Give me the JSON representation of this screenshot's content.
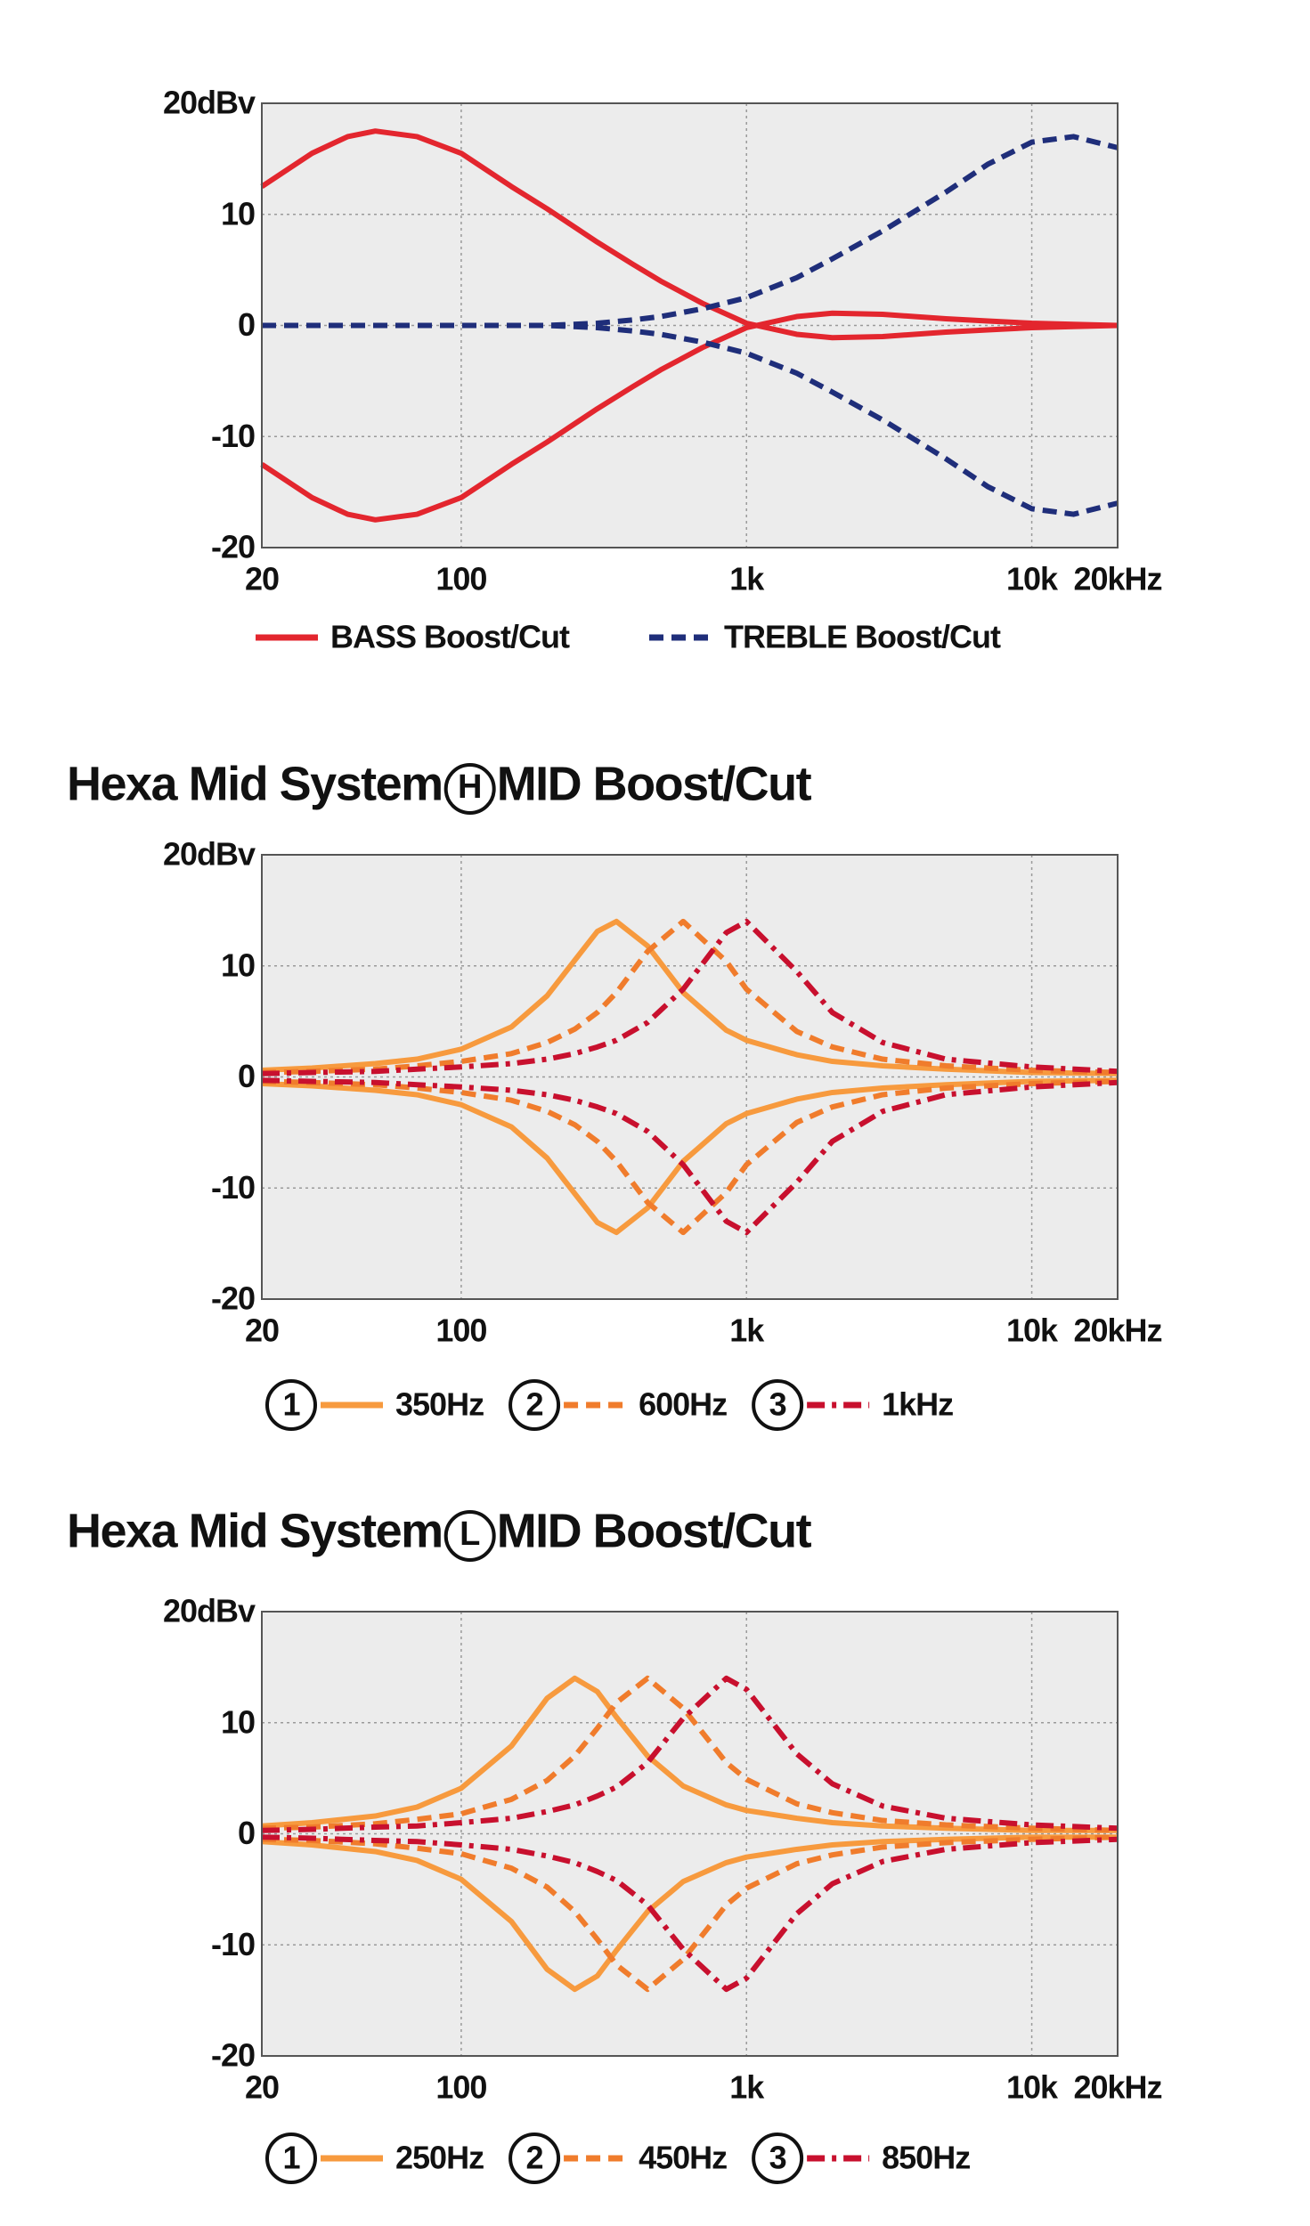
{
  "chart_data": [
    {
      "type": "line",
      "xscale": "log",
      "grid": true,
      "xlim": [
        20,
        20000
      ],
      "xticks": [
        20,
        100,
        {
          "value": 1000,
          "label": "1k"
        },
        {
          "value": 10000,
          "label": "10k"
        },
        {
          "value": 20000,
          "label": "20kHz"
        }
      ],
      "ylim": [
        -20,
        20
      ],
      "yticks": [
        {
          "value": 20,
          "label": "20dBv"
        },
        10,
        0,
        -10,
        -20
      ],
      "x": [
        20,
        30,
        40,
        50,
        70,
        100,
        150,
        200,
        300,
        400,
        500,
        700,
        1000,
        1500,
        2000,
        3000,
        5000,
        7000,
        10000,
        14000,
        20000
      ],
      "series": [
        {
          "name": "BASS Boost/Cut",
          "color": "#e3262e",
          "dash": "solid",
          "boost": [
            12.5,
            15.5,
            17,
            17.5,
            17,
            15.5,
            12.5,
            10.5,
            7.5,
            5.5,
            4,
            2,
            0.2,
            -0.8,
            -1.1,
            -1,
            -0.6,
            -0.4,
            -0.2,
            -0.1,
            0
          ],
          "cut": [
            -12.5,
            -15.5,
            -17,
            -17.5,
            -17,
            -15.5,
            -12.5,
            -10.5,
            -7.5,
            -5.5,
            -4,
            -2,
            -0.2,
            0.8,
            1.1,
            1,
            0.6,
            0.4,
            0.2,
            0.1,
            0
          ]
        },
        {
          "name": "TREBLE Boost/Cut",
          "color": "#1f2e7a",
          "dash": "dashed",
          "boost": [
            0,
            0,
            0,
            0,
            0,
            0,
            0,
            0,
            0.2,
            0.5,
            0.8,
            1.5,
            2.5,
            4.3,
            6,
            8.5,
            12,
            14.5,
            16.5,
            17,
            16
          ],
          "cut": [
            0,
            0,
            0,
            0,
            0,
            0,
            0,
            0,
            -0.2,
            -0.5,
            -0.8,
            -1.5,
            -2.5,
            -4.3,
            -6,
            -8.5,
            -12,
            -14.5,
            -16.5,
            -17,
            -16
          ]
        }
      ]
    },
    {
      "type": "line",
      "xscale": "log",
      "grid": true,
      "title": "Hexa Mid System",
      "title_badge": "H",
      "title_rest": "MID Boost/Cut",
      "xlim": [
        20,
        20000
      ],
      "xticks": [
        20,
        100,
        {
          "value": 1000,
          "label": "1k"
        },
        {
          "value": 10000,
          "label": "10k"
        },
        {
          "value": 20000,
          "label": "20kHz"
        }
      ],
      "ylim": [
        -20,
        20
      ],
      "yticks": [
        {
          "value": 20,
          "label": "20dBv"
        },
        10,
        0,
        -10,
        -20
      ],
      "x": [
        20,
        30,
        50,
        70,
        100,
        150,
        200,
        250,
        300,
        350,
        450,
        600,
        850,
        1000,
        1500,
        2000,
        3000,
        5000,
        10000,
        20000
      ],
      "series": [
        {
          "number": "1",
          "name": "350Hz",
          "color": "#f79a3e",
          "dash": "solid",
          "boost": [
            0.6,
            0.8,
            1.2,
            1.6,
            2.5,
            4.5,
            7.3,
            10.5,
            13.1,
            14,
            11.8,
            7.6,
            4.2,
            3.3,
            2,
            1.4,
            1,
            0.7,
            0.4,
            0.3
          ],
          "cut": [
            -0.6,
            -0.8,
            -1.2,
            -1.6,
            -2.5,
            -4.5,
            -7.3,
            -10.5,
            -13.1,
            -14,
            -11.8,
            -7.6,
            -4.2,
            -3.3,
            -2,
            -1.4,
            -1,
            -0.7,
            -0.4,
            -0.3
          ]
        },
        {
          "number": "2",
          "name": "600Hz",
          "color": "#f07c2c",
          "dash": "dashed",
          "boost": [
            0.4,
            0.5,
            0.7,
            1,
            1.4,
            2.1,
            3.1,
            4.3,
            5.8,
            7.6,
            11.3,
            14,
            10.4,
            7.9,
            4.1,
            2.7,
            1.6,
            1,
            0.6,
            0.4
          ],
          "cut": [
            -0.4,
            -0.5,
            -0.7,
            -1,
            -1.4,
            -2.1,
            -3.1,
            -4.3,
            -5.8,
            -7.6,
            -11.3,
            -14,
            -10.4,
            -7.9,
            -4.1,
            -2.7,
            -1.6,
            -1,
            -0.6,
            -0.4
          ]
        },
        {
          "number": "3",
          "name": "1kHz",
          "color": "#c8102e",
          "dash": "dashdot",
          "boost": [
            0.3,
            0.4,
            0.5,
            0.7,
            0.9,
            1.2,
            1.6,
            2.1,
            2.7,
            3.3,
            4.9,
            7.9,
            13,
            14,
            9.5,
            5.8,
            3.1,
            1.6,
            0.9,
            0.5
          ],
          "cut": [
            -0.3,
            -0.4,
            -0.5,
            -0.7,
            -0.9,
            -1.2,
            -1.6,
            -2.1,
            -2.7,
            -3.3,
            -4.9,
            -7.9,
            -13,
            -14,
            -9.5,
            -5.8,
            -3.1,
            -1.6,
            -0.9,
            -0.5
          ]
        }
      ]
    },
    {
      "type": "line",
      "xscale": "log",
      "grid": true,
      "title": "Hexa Mid System",
      "title_badge": "L",
      "title_rest": "MID Boost/Cut",
      "xlim": [
        20,
        20000
      ],
      "xticks": [
        20,
        100,
        {
          "value": 1000,
          "label": "1k"
        },
        {
          "value": 10000,
          "label": "10k"
        },
        {
          "value": 20000,
          "label": "20kHz"
        }
      ],
      "ylim": [
        -20,
        20
      ],
      "yticks": [
        {
          "value": 20,
          "label": "20dBv"
        },
        10,
        0,
        -10,
        -20
      ],
      "x": [
        20,
        30,
        50,
        70,
        100,
        150,
        200,
        250,
        300,
        350,
        450,
        600,
        850,
        1000,
        1500,
        2000,
        3000,
        5000,
        10000,
        20000
      ],
      "series": [
        {
          "number": "1",
          "name": "250Hz",
          "color": "#f79a3e",
          "dash": "solid",
          "boost": [
            0.7,
            1,
            1.6,
            2.4,
            4.1,
            7.9,
            12.2,
            14,
            12.8,
            10.5,
            7,
            4.3,
            2.6,
            2.1,
            1.4,
            1,
            0.7,
            0.5,
            0.3,
            0.3
          ],
          "cut": [
            -0.7,
            -1,
            -1.6,
            -2.4,
            -4.1,
            -7.9,
            -12.2,
            -14,
            -12.8,
            -10.5,
            -7,
            -4.3,
            -2.6,
            -2.1,
            -1.4,
            -1,
            -0.7,
            -0.5,
            -0.3,
            -0.3
          ]
        },
        {
          "number": "2",
          "name": "450Hz",
          "color": "#f07c2c",
          "dash": "dashed",
          "boost": [
            0.5,
            0.6,
            0.9,
            1.3,
            1.8,
            3.1,
            4.8,
            7,
            9.5,
            11.8,
            14,
            11.3,
            6.4,
            4.9,
            2.7,
            1.9,
            1.2,
            0.8,
            0.5,
            0.3
          ],
          "cut": [
            -0.5,
            -0.6,
            -0.9,
            -1.3,
            -1.8,
            -3.1,
            -4.8,
            -7,
            -9.5,
            -11.8,
            -14,
            -11.3,
            -6.4,
            -4.9,
            -2.7,
            -1.9,
            -1.2,
            -0.8,
            -0.5,
            -0.3
          ]
        },
        {
          "number": "3",
          "name": "850Hz",
          "color": "#c8102e",
          "dash": "dashdot",
          "boost": [
            0.3,
            0.4,
            0.6,
            0.7,
            1,
            1.4,
            2,
            2.6,
            3.4,
            4.2,
            6.4,
            10.4,
            14,
            13,
            7.2,
            4.5,
            2.5,
            1.4,
            0.8,
            0.5
          ],
          "cut": [
            -0.3,
            -0.4,
            -0.6,
            -0.7,
            -1,
            -1.4,
            -2,
            -2.6,
            -3.4,
            -4.2,
            -6.4,
            -10.4,
            -14,
            -13,
            -7.2,
            -4.5,
            -2.5,
            -1.4,
            -0.8,
            -0.5
          ]
        }
      ]
    }
  ]
}
